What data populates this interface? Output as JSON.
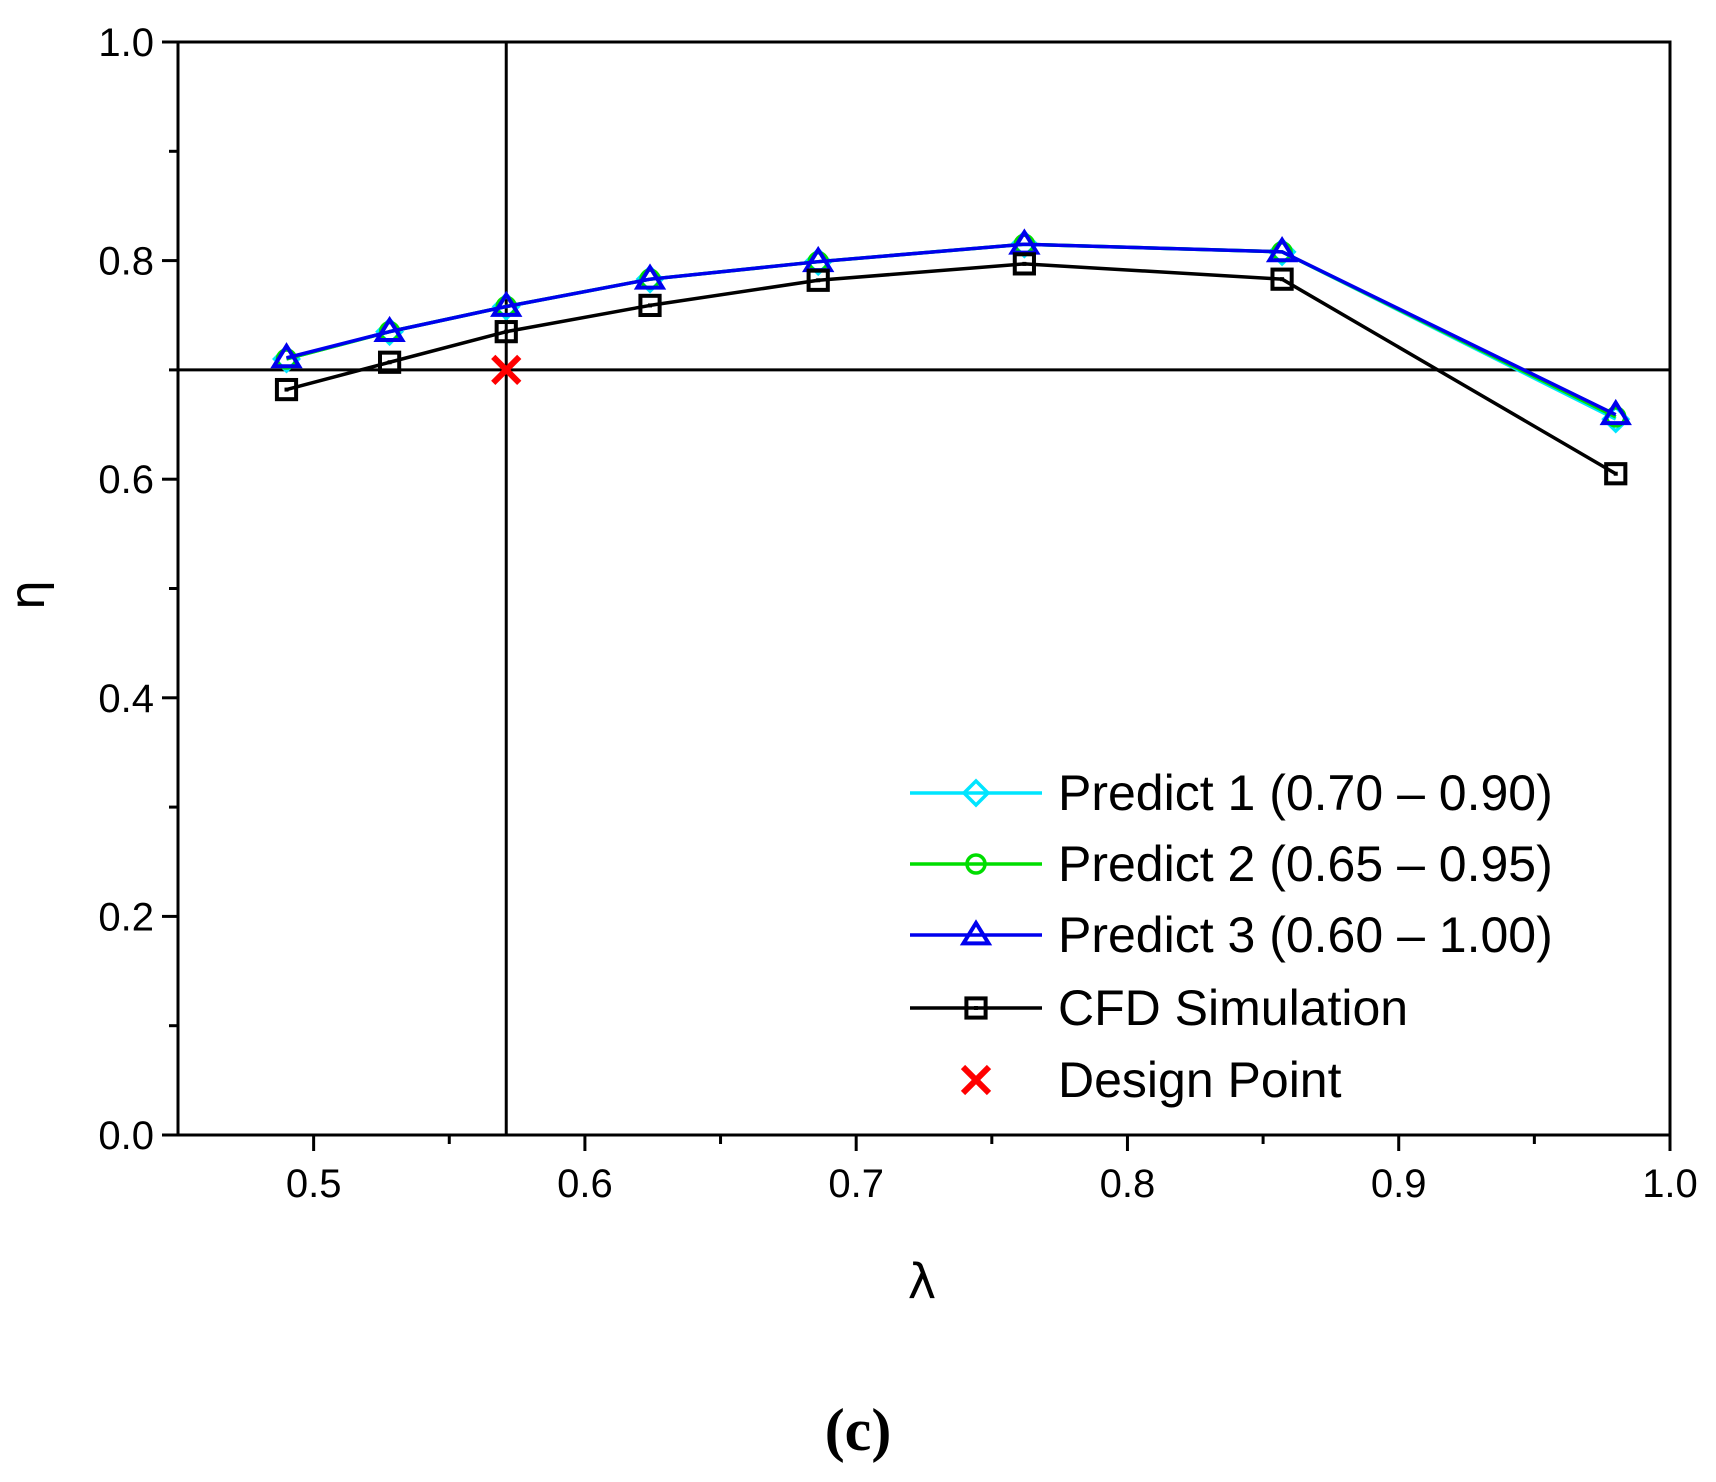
{
  "chart_data": {
    "type": "line",
    "title": "",
    "xlabel": "λ",
    "ylabel": "η",
    "xlim": [
      0.45,
      1.0
    ],
    "ylim": [
      0.0,
      1.0
    ],
    "x_ticks": [
      "0.5",
      "0.6",
      "0.7",
      "0.8",
      "0.9",
      "1.0"
    ],
    "x_tick_values": [
      0.5,
      0.6,
      0.7,
      0.8,
      0.9,
      1.0
    ],
    "y_ticks": [
      "0.0",
      "0.2",
      "0.4",
      "0.6",
      "0.8",
      "1.0"
    ],
    "y_tick_values": [
      0.0,
      0.2,
      0.4,
      0.6,
      0.8,
      1.0
    ],
    "grid": false,
    "legend_position": "bottom-right",
    "reference_lines": {
      "vertical_x": 0.571,
      "horizontal_y": 0.7
    },
    "x": [
      0.49,
      0.528,
      0.571,
      0.624,
      0.686,
      0.762,
      0.857,
      0.98
    ],
    "series": [
      {
        "name": "Predict 1 (0.70 – 0.90)",
        "color": "#00e5ff",
        "marker": "diamond",
        "values": [
          0.71,
          0.735,
          0.758,
          0.783,
          0.799,
          0.815,
          0.808,
          0.655
        ]
      },
      {
        "name": "Predict 2 (0.65 – 0.95)",
        "color": "#00dd00",
        "marker": "circle",
        "values": [
          0.71,
          0.735,
          0.758,
          0.783,
          0.799,
          0.815,
          0.808,
          0.657
        ]
      },
      {
        "name": "Predict 3 (0.60 – 1.00)",
        "color": "#0000ee",
        "marker": "triangle",
        "values": [
          0.711,
          0.735,
          0.758,
          0.783,
          0.799,
          0.815,
          0.808,
          0.659
        ]
      },
      {
        "name": "CFD Simulation",
        "color": "#000000",
        "marker": "square",
        "values": [
          0.682,
          0.707,
          0.735,
          0.759,
          0.782,
          0.797,
          0.783,
          0.605
        ]
      }
    ],
    "design_point": {
      "name": "Design Point",
      "x": 0.571,
      "y": 0.7,
      "color": "#ff0000",
      "marker": "x"
    }
  },
  "caption": "(c)"
}
